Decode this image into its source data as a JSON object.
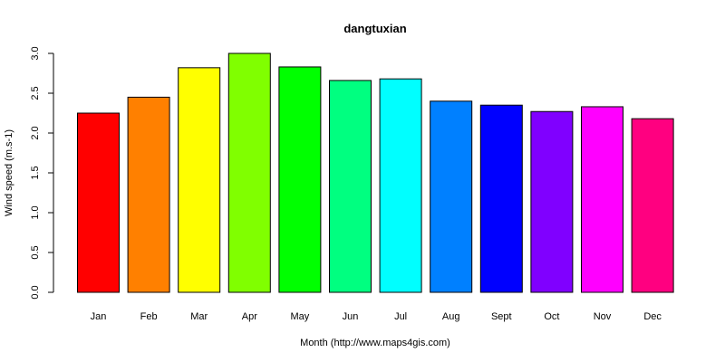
{
  "chart_data": {
    "type": "bar",
    "title": "dangtuxian",
    "xlabel": "Month (http://www.maps4gis.com)",
    "ylabel": "Wind speed (m.s-1)",
    "categories": [
      "Jan",
      "Feb",
      "Mar",
      "Apr",
      "May",
      "Jun",
      "Jul",
      "Aug",
      "Sept",
      "Oct",
      "Nov",
      "Dec"
    ],
    "values": [
      2.25,
      2.45,
      2.82,
      3.0,
      2.83,
      2.66,
      2.68,
      2.4,
      2.35,
      2.27,
      2.33,
      2.18
    ],
    "colors": [
      "#FF0000",
      "#FF8000",
      "#FFFF00",
      "#80FF00",
      "#00FF00",
      "#00FF80",
      "#00FFFF",
      "#0080FF",
      "#0000FF",
      "#8000FF",
      "#FF00FF",
      "#FF0080"
    ],
    "ylim": [
      0,
      3.0
    ],
    "yticks": [
      0.0,
      0.5,
      1.0,
      1.5,
      2.0,
      2.5,
      3.0
    ],
    "ytick_labels": [
      "0.0",
      "0.5",
      "1.0",
      "1.5",
      "2.0",
      "2.5",
      "3.0"
    ],
    "grid": false,
    "legend": false
  }
}
